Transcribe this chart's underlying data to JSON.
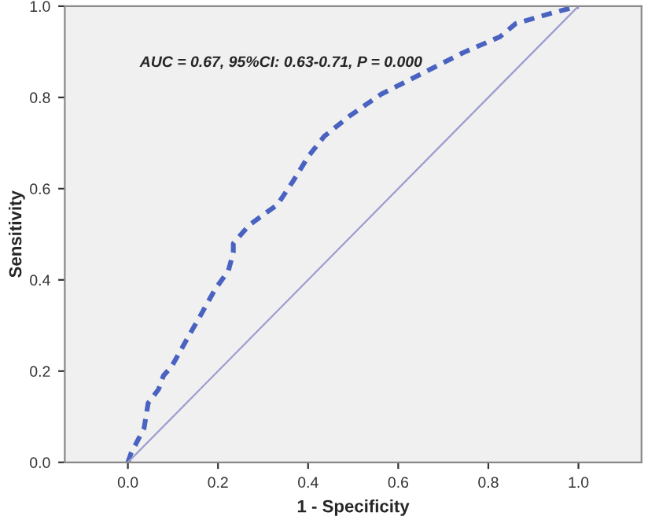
{
  "chart_data": {
    "type": "line",
    "xlabel": "1 - Specificity",
    "ylabel": "Sensitivity",
    "annotations": [
      "AUC = 0.67, 95%CI: 0.63-0.71, P = 0.000"
    ],
    "xlim": [
      -0.14,
      1.14
    ],
    "ylim": [
      0,
      1
    ],
    "xticks": [
      {
        "value": 0,
        "label": "0.0"
      },
      {
        "value": 0.2,
        "label": "0.2"
      },
      {
        "value": 0.4,
        "label": "0.4"
      },
      {
        "value": 0.6,
        "label": "0.6"
      },
      {
        "value": 0.8,
        "label": "0.8"
      },
      {
        "value": 1,
        "label": "1.0"
      }
    ],
    "yticks": [
      {
        "value": 0,
        "label": "0.0"
      },
      {
        "value": 0.2,
        "label": "0.2"
      },
      {
        "value": 0.4,
        "label": "0.4"
      },
      {
        "value": 0.6,
        "label": "0.6"
      },
      {
        "value": 0.8,
        "label": "0.8"
      },
      {
        "value": 1,
        "label": "1.0"
      }
    ],
    "grid": false,
    "legend": false,
    "series": [
      {
        "color": "#4a62c0",
        "line_style": "dashed",
        "x": [
          0,
          0.007,
          0.036,
          0.045,
          0.068,
          0.079,
          0.097,
          0.131,
          0.16,
          0.194,
          0.223,
          0.234,
          0.234,
          0.269,
          0.332,
          0.367,
          0.4,
          0.436,
          0.493,
          0.562,
          0.654,
          0.746,
          0.826,
          0.861,
          0.941,
          1.0
        ],
        "values": [
          0,
          0.02,
          0.075,
          0.13,
          0.16,
          0.19,
          0.21,
          0.27,
          0.32,
          0.38,
          0.42,
          0.46,
          0.48,
          0.52,
          0.565,
          0.617,
          0.67,
          0.715,
          0.76,
          0.807,
          0.853,
          0.899,
          0.933,
          0.962,
          0.985,
          1.0
        ]
      },
      {
        "color": "#9c9cd0",
        "line_style": "solid",
        "x": [
          0,
          1
        ],
        "values": [
          0,
          1
        ]
      }
    ]
  }
}
